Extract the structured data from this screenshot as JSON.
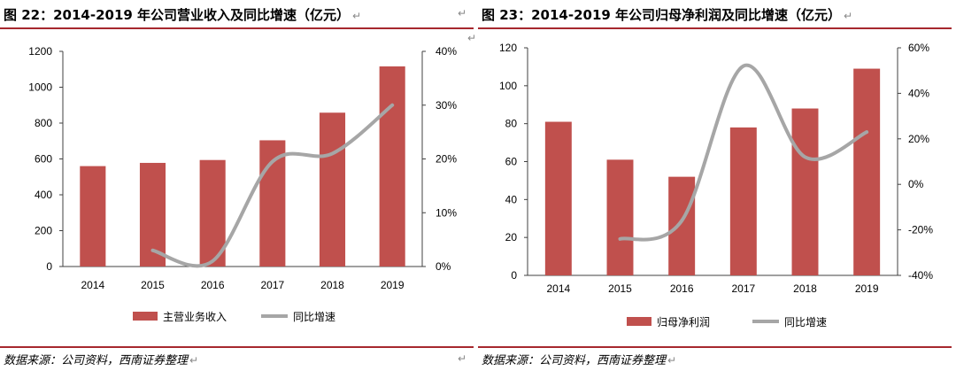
{
  "charts": [
    {
      "title": "图 22：2014-2019 年公司营业收入及同比增速（亿元）",
      "source": "数据来源：公司资料，西南证券整理",
      "return_mark": "↵"
    },
    {
      "title": "图 23：2014-2019 年公司归母净利润及同比增速（亿元）",
      "source": "数据来源：公司资料，西南证券整理",
      "return_mark": "↵"
    }
  ],
  "colors": {
    "bar": "#c0504d",
    "line": "#a6a6a6",
    "rule": "#a6282e"
  },
  "chart_data": [
    {
      "type": "bar",
      "categories": [
        "2014",
        "2015",
        "2016",
        "2017",
        "2018",
        "2019"
      ],
      "series": [
        {
          "name": "主营业务收入",
          "type": "bar",
          "axis": "left",
          "values": [
            560,
            578,
            594,
            704,
            858,
            1116
          ]
        },
        {
          "name": "同比增速",
          "type": "line",
          "axis": "right",
          "smooth": true,
          "values": [
            null,
            3,
            1,
            19.5,
            21,
            30
          ]
        }
      ],
      "ylim": [
        0,
        1200
      ],
      "yticks": [
        0,
        200,
        400,
        600,
        800,
        1000,
        1200
      ],
      "y2lim": [
        0,
        40
      ],
      "y2ticks": [
        "0%",
        "10%",
        "20%",
        "30%",
        "40%"
      ],
      "legend": "bottom",
      "grid": false
    },
    {
      "type": "bar",
      "categories": [
        "2014",
        "2015",
        "2016",
        "2017",
        "2018",
        "2019"
      ],
      "series": [
        {
          "name": "归母净利润",
          "type": "bar",
          "axis": "left",
          "values": [
            81,
            61,
            52,
            78,
            88,
            109
          ]
        },
        {
          "name": "同比增速",
          "type": "line",
          "axis": "right",
          "smooth": true,
          "values": [
            null,
            -24,
            -16,
            52,
            12,
            23
          ]
        }
      ],
      "ylim": [
        0,
        120
      ],
      "yticks": [
        0,
        20,
        40,
        60,
        80,
        100,
        120
      ],
      "y2lim": [
        -40,
        60
      ],
      "y2ticks": [
        "-40%",
        "-20%",
        "0%",
        "20%",
        "40%",
        "60%"
      ],
      "legend": "bottom",
      "grid": false
    }
  ]
}
